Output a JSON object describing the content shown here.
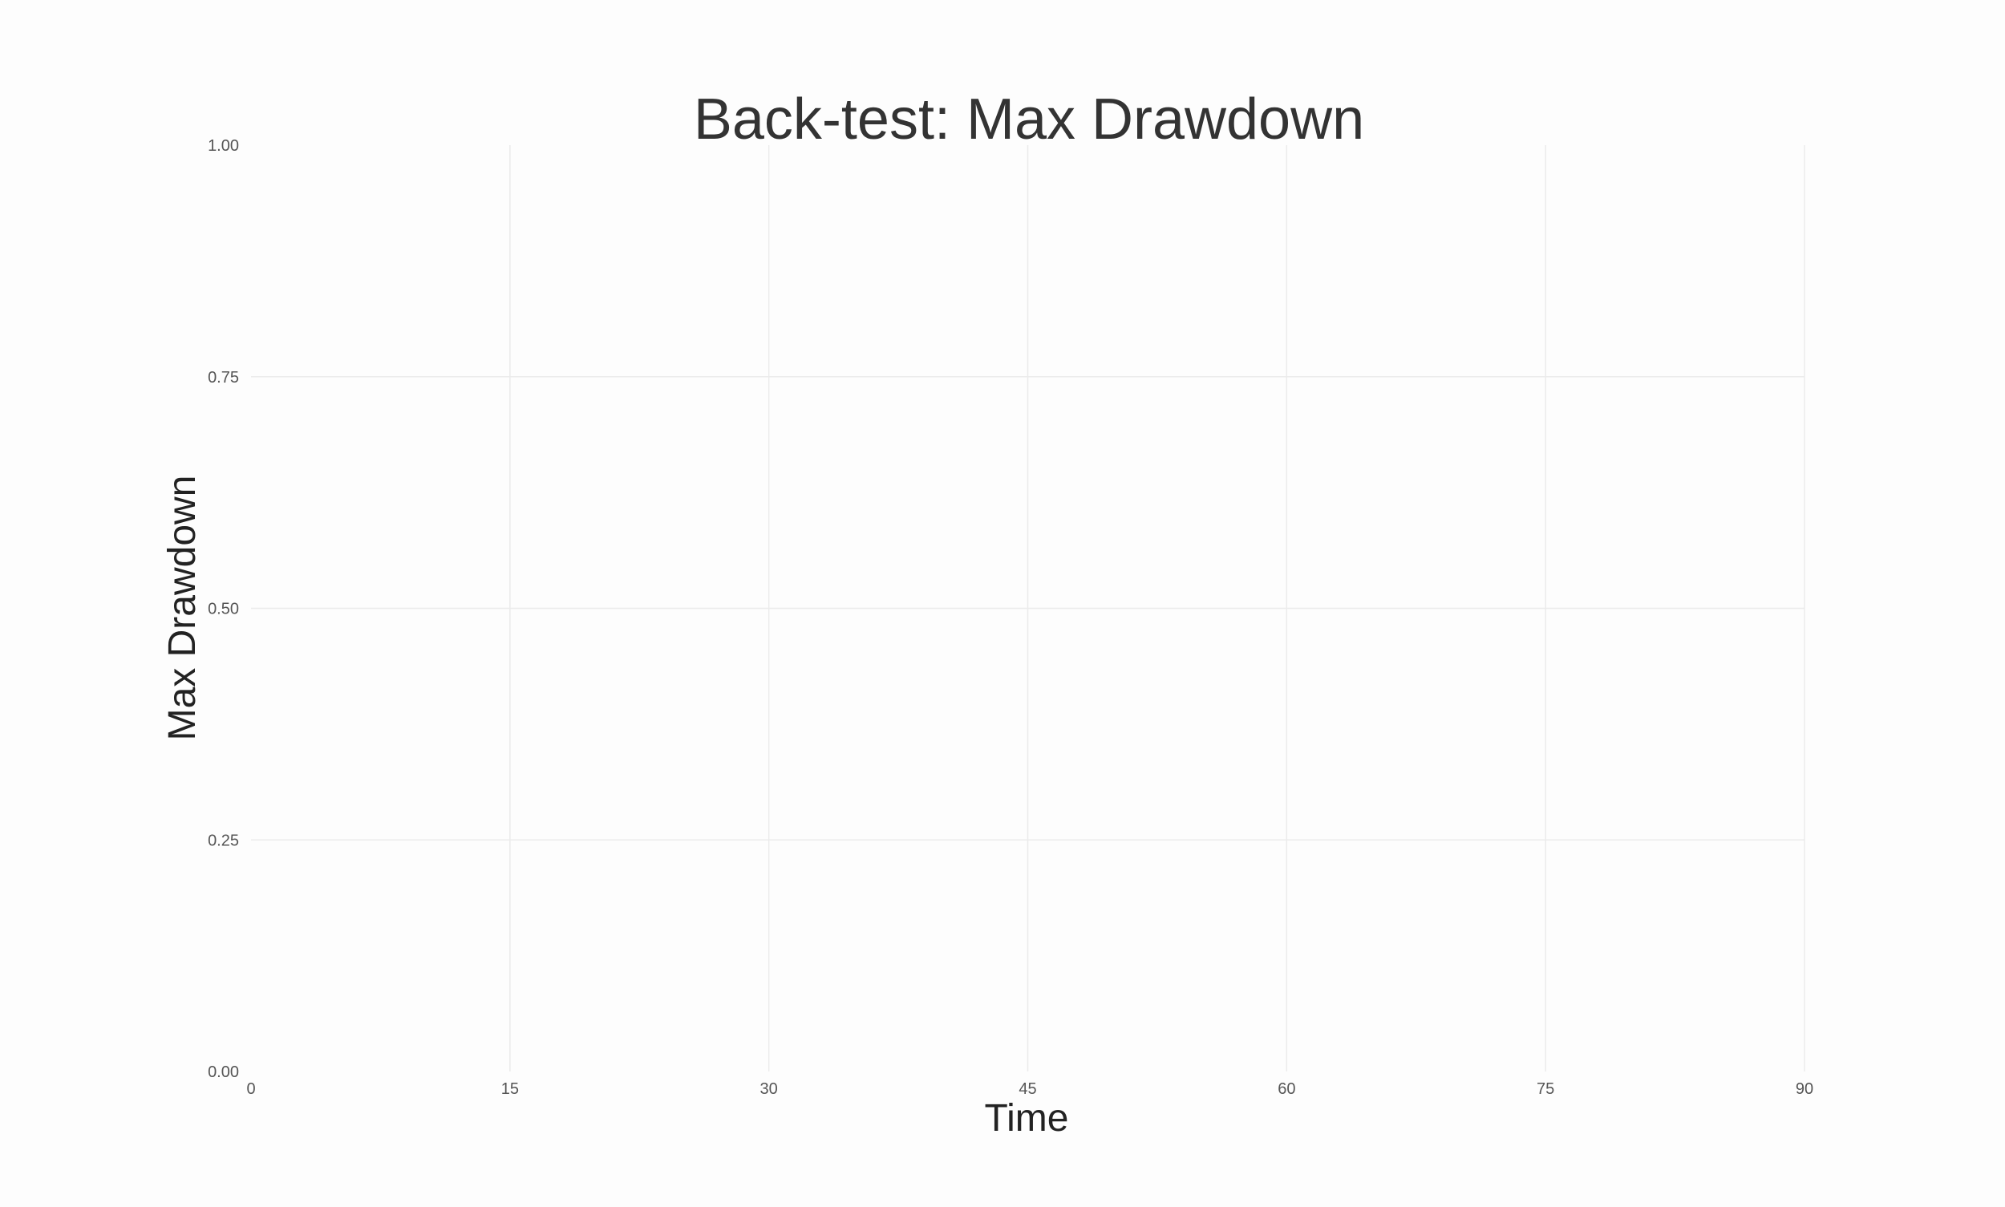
{
  "chart_data": {
    "type": "line",
    "title": "Back-test: Max Drawdown",
    "xlabel": "Time",
    "ylabel": "Max Drawdown",
    "xlim": [
      0,
      90
    ],
    "ylim": [
      0,
      1
    ],
    "x_ticks": [
      "0",
      "15",
      "30",
      "45",
      "60",
      "75",
      "90"
    ],
    "y_ticks": [
      "0.00",
      "0.25",
      "0.50",
      "0.75",
      "1.00"
    ],
    "x_tick_values": [
      0,
      15,
      30,
      45,
      60,
      75,
      90
    ],
    "y_tick_values": [
      0,
      0.25,
      0.5,
      0.75,
      1
    ],
    "grid": true,
    "series": [],
    "colors": {
      "background": "#fdfdfd",
      "grid": "#ebebeb",
      "title": "#333333",
      "axis_label": "#222222",
      "tick_label": "#555555"
    }
  }
}
